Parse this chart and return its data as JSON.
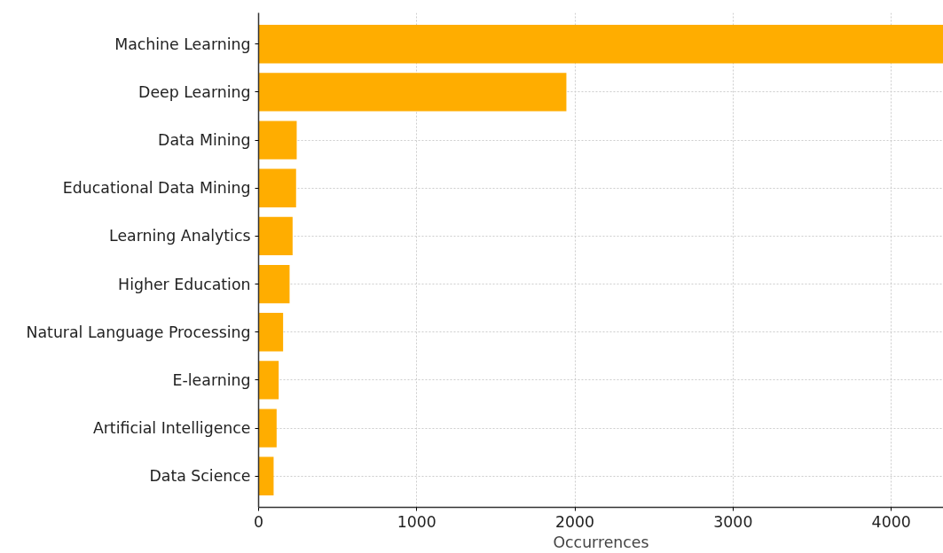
{
  "chart_data": {
    "type": "bar",
    "orientation": "horizontal",
    "xlabel": "Occurrences",
    "categories": [
      "Machine Learning",
      "Deep Learning",
      "Data Mining",
      "Educational Data Mining",
      "Learning Analytics",
      "Higher Education",
      "Natural Language Processing",
      "E-learning",
      "Artificial Intelligence",
      "Data Science"
    ],
    "values": [
      4330,
      1946,
      241,
      237,
      215,
      196,
      155,
      127,
      114,
      95
    ],
    "color": "#ffad00",
    "xlim": [
      0,
      4330
    ],
    "xticks": [
      0,
      1000,
      2000,
      3000,
      4000
    ],
    "grid": true
  }
}
